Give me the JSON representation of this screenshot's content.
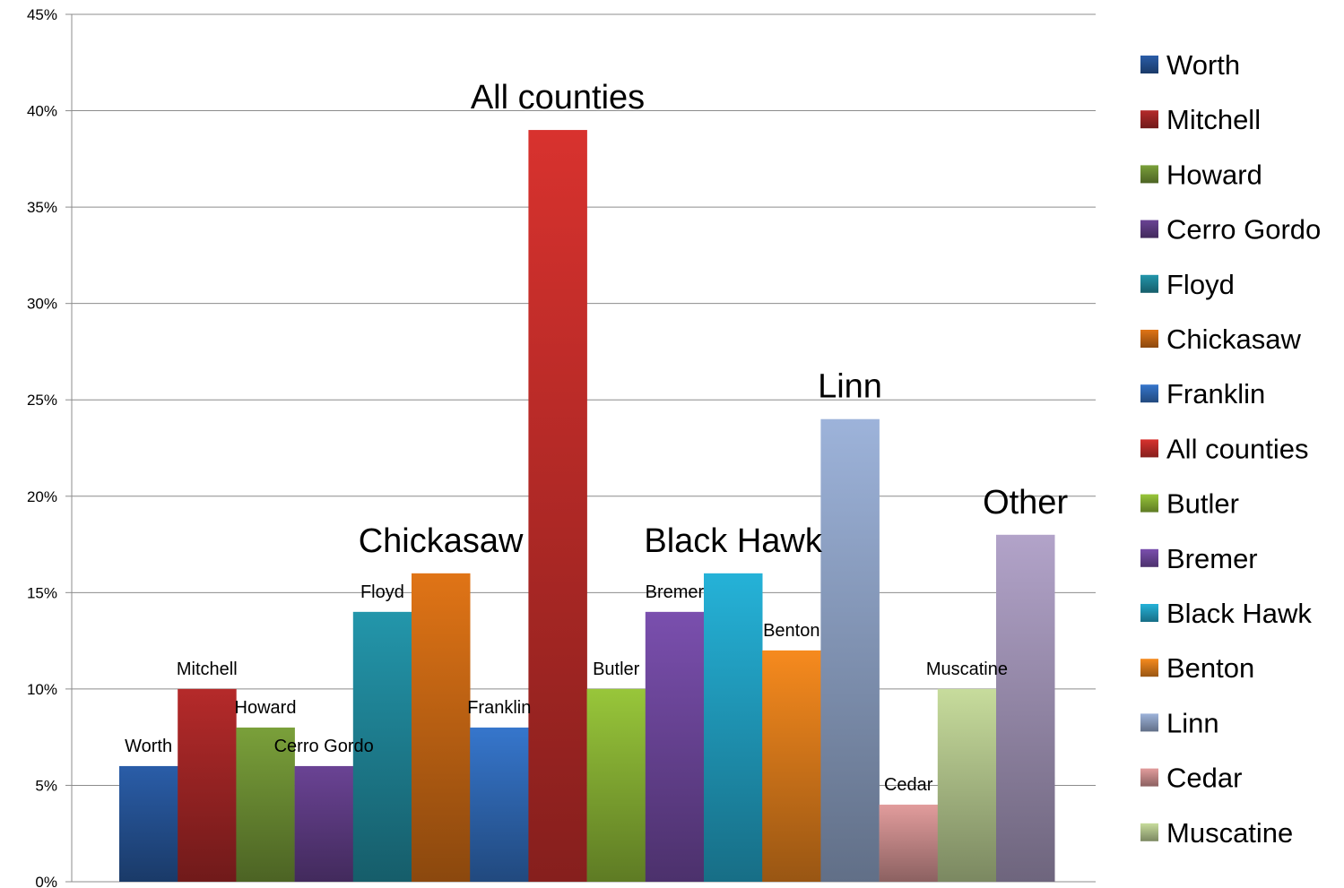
{
  "chart_data": {
    "type": "bar",
    "categories": [
      "Worth",
      "Mitchell",
      "Howard",
      "Cerro Gordo",
      "Floyd",
      "Chickasaw",
      "Franklin",
      "All counties",
      "Butler",
      "Bremer",
      "Black Hawk",
      "Benton",
      "Linn",
      "Cedar",
      "Muscatine",
      "Other"
    ],
    "values": [
      6,
      10,
      8,
      6,
      14,
      16,
      8,
      39,
      10,
      14,
      16,
      12,
      24,
      4,
      10,
      18
    ],
    "value_unit": "%",
    "ylim": [
      0,
      45
    ],
    "yticks": [
      "0%",
      "5%",
      "10%",
      "15%",
      "20%",
      "25%",
      "30%",
      "35%",
      "40%",
      "45%"
    ],
    "grid": true,
    "legend_position": "right",
    "legend": [
      "Worth",
      "Mitchell",
      "Howard",
      "Cerro Gordo",
      "Floyd",
      "Chickasaw",
      "Franklin",
      "All counties",
      "Butler",
      "Bremer",
      "Black Hawk",
      "Benton",
      "Linn",
      "Cedar",
      "Muscatine"
    ],
    "bar_labels": [
      {
        "text": "Worth",
        "bar": 0,
        "size": "small"
      },
      {
        "text": "Mitchell",
        "bar": 1,
        "size": "small"
      },
      {
        "text": "Howard",
        "bar": 2,
        "size": "small"
      },
      {
        "text": "Cerro Gordo",
        "bar": 3,
        "size": "small"
      },
      {
        "text": "Floyd",
        "bar": 4,
        "size": "small"
      },
      {
        "text": "Chickasaw",
        "bar": 5,
        "size": "large"
      },
      {
        "text": "Franklin",
        "bar": 6,
        "size": "small"
      },
      {
        "text": "All counties",
        "bar": 7,
        "size": "large"
      },
      {
        "text": "Butler",
        "bar": 8,
        "size": "small"
      },
      {
        "text": "Bremer",
        "bar": 9,
        "size": "small"
      },
      {
        "text": "Black Hawk",
        "bar": 10,
        "size": "large"
      },
      {
        "text": "Benton",
        "bar": 11,
        "size": "small"
      },
      {
        "text": "Linn",
        "bar": 12,
        "size": "large"
      },
      {
        "text": "Cedar",
        "bar": 13,
        "size": "small"
      },
      {
        "text": "Muscatine",
        "bar": 14,
        "size": "small"
      },
      {
        "text": "Other",
        "bar": 15,
        "size": "large"
      }
    ],
    "colors": [
      "#2a5da8",
      "#b52a2a",
      "#7aa03a",
      "#6a4394",
      "#2396ab",
      "#e07416",
      "#3676cc",
      "#d8322e",
      "#98c63a",
      "#7a4fae",
      "#25b2d8",
      "#f68a1e",
      "#9db3da",
      "#e29c9c",
      "#c7dc9c",
      "#b2a3c9"
    ]
  }
}
